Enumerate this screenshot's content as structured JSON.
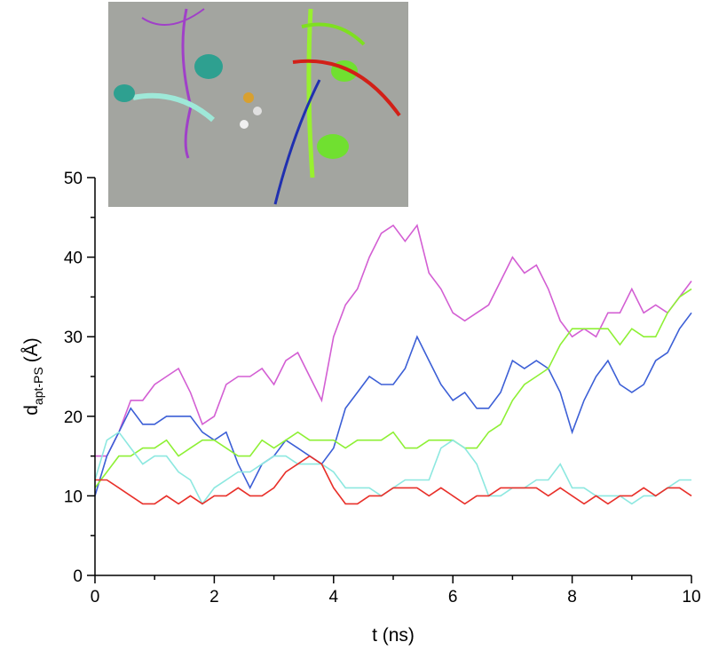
{
  "chart_data": {
    "type": "line",
    "xlabel": "t (ns)",
    "ylabel": {
      "main": "d",
      "sub": "apt-PS",
      "unit": "(Å)"
    },
    "x": [
      0,
      0.2,
      0.4,
      0.6,
      0.8,
      1,
      1.2,
      1.4,
      1.6,
      1.8,
      2,
      2.2,
      2.4,
      2.6,
      2.8,
      3,
      3.2,
      3.4,
      3.6,
      3.8,
      4,
      4.2,
      4.4,
      4.6,
      4.8,
      5,
      5.2,
      5.4,
      5.6,
      5.8,
      6,
      6.2,
      6.4,
      6.6,
      6.8,
      7,
      7.2,
      7.4,
      7.6,
      7.8,
      8,
      8.2,
      8.4,
      8.6,
      8.8,
      9,
      9.2,
      9.4,
      9.6,
      9.8,
      10
    ],
    "series": [
      {
        "color": "#d35fd3",
        "values": [
          15,
          15,
          18,
          22,
          22,
          24,
          25,
          26,
          23,
          19,
          20,
          24,
          25,
          25,
          26,
          24,
          27,
          28,
          25,
          22,
          30,
          34,
          36,
          40,
          43,
          44,
          42,
          44,
          38,
          36,
          33,
          32,
          33,
          34,
          37,
          40,
          38,
          39,
          36,
          32,
          30,
          31,
          30,
          33,
          33,
          36,
          33,
          34,
          33,
          35,
          37
        ]
      },
      {
        "color": "#3c5fd6",
        "values": [
          10,
          15,
          18,
          21,
          19,
          19,
          20,
          20,
          20,
          18,
          17,
          18,
          14,
          11,
          14,
          15,
          17,
          16,
          15,
          14,
          16,
          21,
          23,
          25,
          24,
          24,
          26,
          30,
          27,
          24,
          22,
          23,
          21,
          21,
          23,
          27,
          26,
          27,
          26,
          23,
          18,
          22,
          25,
          27,
          24,
          23,
          24,
          27,
          28,
          31,
          33
        ]
      },
      {
        "color": "#8ef035",
        "values": [
          11,
          13,
          15,
          15,
          16,
          16,
          17,
          15,
          16,
          17,
          17,
          16,
          15,
          15,
          17,
          16,
          17,
          18,
          17,
          17,
          17,
          16,
          17,
          17,
          17,
          18,
          16,
          16,
          17,
          17,
          17,
          16,
          16,
          18,
          19,
          22,
          24,
          25,
          26,
          29,
          31,
          31,
          31,
          31,
          29,
          31,
          30,
          30,
          33,
          35,
          36
        ]
      },
      {
        "color": "#8de8e0",
        "values": [
          12,
          17,
          18,
          16,
          14,
          15,
          15,
          13,
          12,
          9,
          11,
          12,
          13,
          13,
          14,
          15,
          15,
          14,
          14,
          14,
          13,
          11,
          11,
          11,
          10,
          11,
          12,
          12,
          12,
          16,
          17,
          16,
          14,
          10,
          10,
          11,
          11,
          12,
          12,
          14,
          11,
          11,
          10,
          10,
          10,
          9,
          10,
          10,
          11,
          12,
          12
        ]
      },
      {
        "color": "#e8302a",
        "values": [
          12,
          12,
          11,
          10,
          9,
          9,
          10,
          9,
          10,
          9,
          10,
          10,
          11,
          10,
          10,
          11,
          13,
          14,
          15,
          14,
          11,
          9,
          9,
          10,
          10,
          11,
          11,
          11,
          10,
          11,
          10,
          9,
          10,
          10,
          11,
          11,
          11,
          11,
          10,
          11,
          10,
          9,
          10,
          9,
          10,
          10,
          11,
          10,
          11,
          11,
          10
        ]
      }
    ],
    "xlim": [
      0,
      10
    ],
    "xticks": [
      0,
      2,
      4,
      6,
      8,
      10
    ],
    "xminorticks": [
      1,
      3,
      5,
      7,
      9
    ],
    "ylim": [
      0,
      50
    ],
    "yticks": [
      0,
      10,
      20,
      30,
      40,
      50
    ],
    "yminorticks": [
      5,
      15,
      25,
      35,
      45
    ],
    "grid": false
  }
}
